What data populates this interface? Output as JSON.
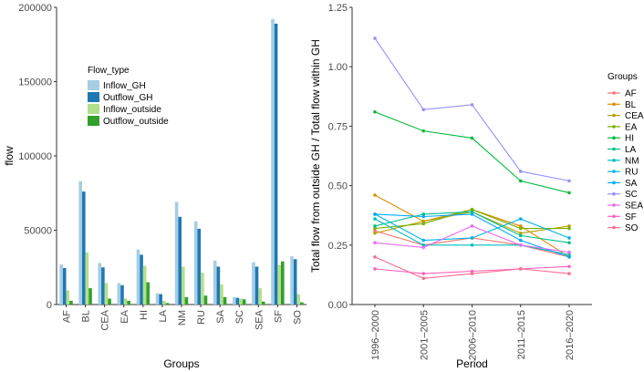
{
  "chart_data": [
    {
      "type": "bar",
      "title": "",
      "xlabel": "Groups",
      "ylabel": "flow",
      "ylim": [
        0,
        200000
      ],
      "y_ticks": [
        0,
        50000,
        100000,
        150000,
        200000
      ],
      "y_tick_labels": [
        "0",
        "50000",
        "100000",
        "150000",
        "200000"
      ],
      "categories": [
        "AF",
        "BL",
        "CEA",
        "EA",
        "HI",
        "LA",
        "NM",
        "RU",
        "SA",
        "SC",
        "SEA",
        "SF",
        "SO"
      ],
      "legend_title": "Flow_type",
      "legend_position": "top-center",
      "series": [
        {
          "name": "Inflow_GH",
          "color": "#a6cee3",
          "values": [
            27000,
            83000,
            28000,
            14500,
            37000,
            7500,
            69000,
            56000,
            29500,
            5000,
            28500,
            192000,
            32500
          ]
        },
        {
          "name": "Outflow_GH",
          "color": "#1f78b4",
          "values": [
            24500,
            76000,
            25000,
            13000,
            33500,
            7000,
            59000,
            51000,
            25500,
            4500,
            25500,
            189000,
            30500
          ]
        },
        {
          "name": "Inflow_outside",
          "color": "#b2df8a",
          "values": [
            9500,
            35000,
            14500,
            4000,
            26000,
            2500,
            25500,
            21500,
            13500,
            4000,
            11000,
            26500,
            7000
          ]
        },
        {
          "name": "Outflow_outside",
          "color": "#33a02c",
          "values": [
            2500,
            11000,
            4000,
            2500,
            15000,
            1000,
            5000,
            6000,
            5000,
            3500,
            2000,
            29000,
            1500
          ]
        }
      ]
    },
    {
      "type": "line",
      "title": "",
      "xlabel": "Period",
      "ylabel": "Total flow from outside GH / Total flow within GH",
      "ylim": [
        0,
        1.25
      ],
      "y_ticks": [
        0,
        0.25,
        0.5,
        0.75,
        1.0,
        1.25
      ],
      "y_tick_labels": [
        "0.00",
        "0.25",
        "0.50",
        "0.75",
        "1.00",
        "1.25"
      ],
      "x": [
        "1996–2000",
        "2001–2005",
        "2006–2010",
        "2011–2015",
        "2016–2020"
      ],
      "legend_title": "Groups",
      "legend_position": "right",
      "series": [
        {
          "name": "AF",
          "color": "#f8766d",
          "values": [
            0.31,
            0.25,
            0.28,
            0.25,
            0.2
          ]
        },
        {
          "name": "BL",
          "color": "#de8c00",
          "values": [
            0.46,
            0.35,
            0.4,
            0.33,
            0.2
          ]
        },
        {
          "name": "CEA",
          "color": "#b79f00",
          "values": [
            0.3,
            0.35,
            0.39,
            0.3,
            0.33
          ]
        },
        {
          "name": "EA",
          "color": "#7cae00",
          "values": [
            0.32,
            0.34,
            0.4,
            0.32,
            0.32
          ]
        },
        {
          "name": "HI",
          "color": "#00ba38",
          "values": [
            0.81,
            0.73,
            0.7,
            0.52,
            0.47
          ]
        },
        {
          "name": "LA",
          "color": "#00c08b",
          "values": [
            0.33,
            0.38,
            0.39,
            0.29,
            0.26
          ]
        },
        {
          "name": "NM",
          "color": "#00bfc4",
          "values": [
            0.36,
            0.25,
            0.25,
            0.25,
            0.21
          ]
        },
        {
          "name": "RU",
          "color": "#00b4f0",
          "values": [
            0.38,
            0.27,
            0.28,
            0.36,
            0.28
          ]
        },
        {
          "name": "SA",
          "color": "#00a9ff",
          "values": [
            0.38,
            0.37,
            0.38,
            0.27,
            0.2
          ]
        },
        {
          "name": "SC",
          "color": "#9591ff",
          "values": [
            1.12,
            0.82,
            0.84,
            0.56,
            0.52
          ]
        },
        {
          "name": "SEA",
          "color": "#e76bf3",
          "values": [
            0.26,
            0.24,
            0.33,
            0.25,
            0.22
          ]
        },
        {
          "name": "SF",
          "color": "#ff62bc",
          "values": [
            0.15,
            0.13,
            0.14,
            0.15,
            0.16
          ]
        },
        {
          "name": "SO",
          "color": "#ff6c91",
          "values": [
            0.2,
            0.11,
            0.13,
            0.15,
            0.13
          ]
        }
      ]
    }
  ]
}
